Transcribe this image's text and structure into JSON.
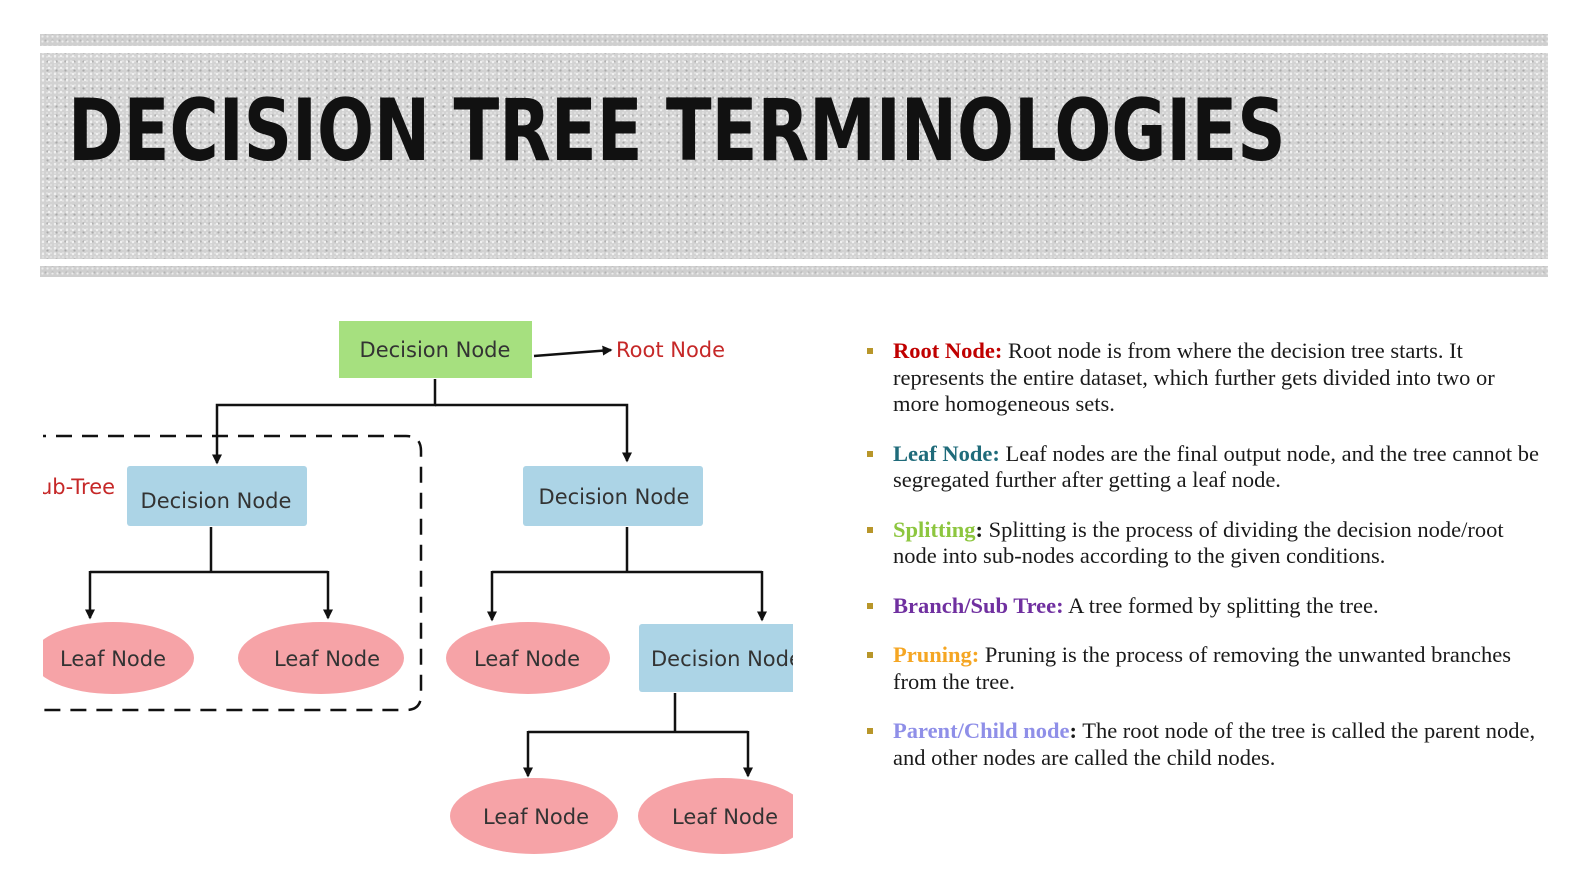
{
  "slide": {
    "title": "DECISION TREE TERMINOLOGIES"
  },
  "diagram": {
    "root": {
      "label": "Decision Node",
      "callout": "Root Node"
    },
    "subtree_label": "ub-Tree",
    "left_decision": {
      "label": "Decision Node"
    },
    "right_decision": {
      "label": "Decision Node"
    },
    "lower_decision": {
      "label": "Decision Node"
    },
    "leaf_a": {
      "label": "Leaf Node"
    },
    "leaf_b": {
      "label": "Leaf Node"
    },
    "leaf_c": {
      "label": "Leaf Node"
    },
    "leaf_d": {
      "label": "Leaf Node"
    },
    "leaf_e": {
      "label": "Leaf Node"
    },
    "colors": {
      "decision_root": "#a6e07f",
      "decision_node": "#acd4e6",
      "leaf_node": "#f6a3a7",
      "callout_text": "#c62828",
      "edge": "#111111"
    }
  },
  "terms": [
    {
      "name": "Root Node",
      "name_color": "#c00000",
      "colon_color": "#c00000",
      "text": "Root node is from where the decision tree starts. It represents the entire dataset, which further gets divided into two or more homogeneous sets."
    },
    {
      "name": "Leaf Node",
      "name_color": "#1f6b7a",
      "colon_color": "#1f6b7a",
      "text": "Leaf nodes are the final output node, and the tree cannot be segregated further after getting a leaf node."
    },
    {
      "name": "Splitting",
      "name_color": "#8dc63f",
      "colon_color": "#1a1a1a",
      "text": "Splitting is the process of dividing the decision node/root node into sub-nodes according to the given conditions."
    },
    {
      "name": "Branch/Sub Tree",
      "name_color": "#7030a0",
      "colon_color": "#7030a0",
      "text": "A tree formed by splitting the tree."
    },
    {
      "name": "Pruning",
      "name_color": "#f5a623",
      "colon_color": "#f5a623",
      "text": "Pruning is the process of removing the unwanted branches from the tree."
    },
    {
      "name": "Parent/Child node",
      "name_color": "#8f8fe8",
      "colon_color": "#1a1a1a",
      "text": "The root node of the tree is called the parent node, and other nodes are called the child nodes."
    }
  ],
  "colon": ":",
  "bullet_color": "#b8962a"
}
